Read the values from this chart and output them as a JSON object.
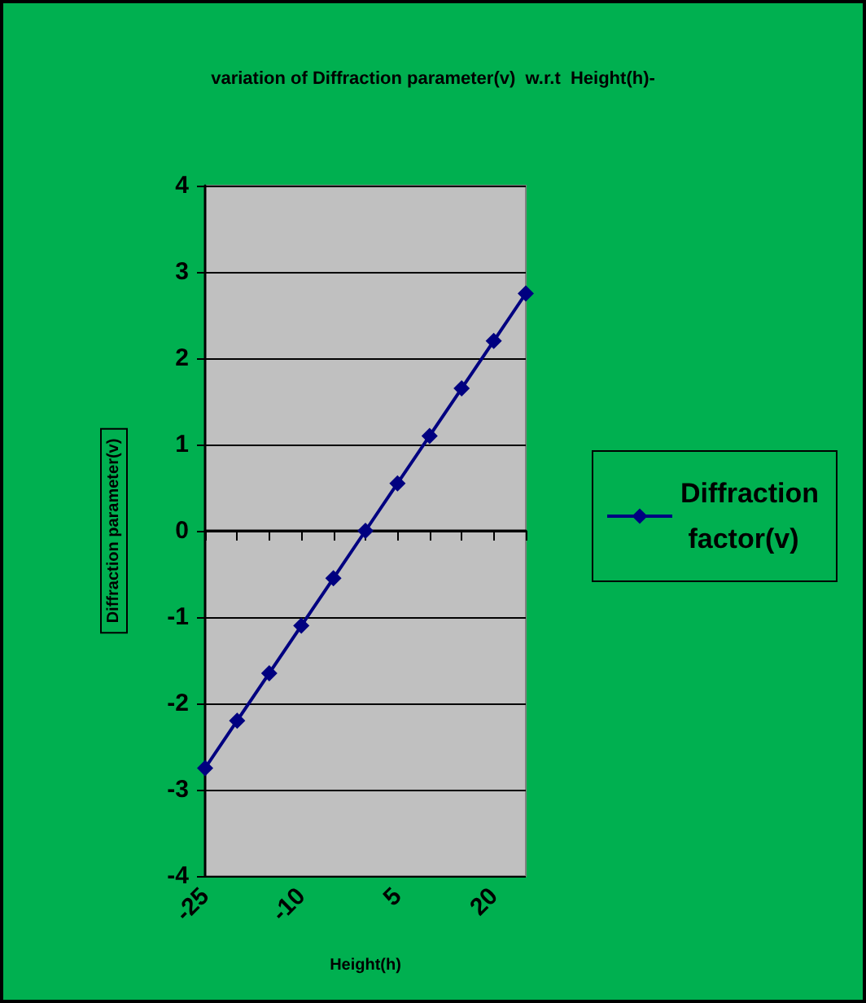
{
  "chart_data": {
    "type": "line",
    "title": "variation of Diffraction parameter(v)  w.r.t  Height(h)-",
    "xlabel": "Height(h)",
    "ylabel": "Diffraction parameter(v)",
    "categories": [
      "-25",
      null,
      null,
      "-10",
      null,
      null,
      "5",
      null,
      null,
      "20",
      null
    ],
    "series": [
      {
        "name": "Diffraction factor(v)",
        "color": "#000080",
        "values": [
          -2.75,
          -2.2,
          -1.65,
          -1.1,
          -0.55,
          0,
          0.55,
          1.1,
          1.65,
          2.2,
          2.75
        ]
      }
    ],
    "ylim": [
      -4,
      4
    ],
    "yticks": [
      -4,
      -3,
      -2,
      -1,
      0,
      1,
      2,
      3,
      4
    ],
    "grid": "y",
    "legend": "right",
    "marker": "diamond",
    "line_style": "solid"
  }
}
